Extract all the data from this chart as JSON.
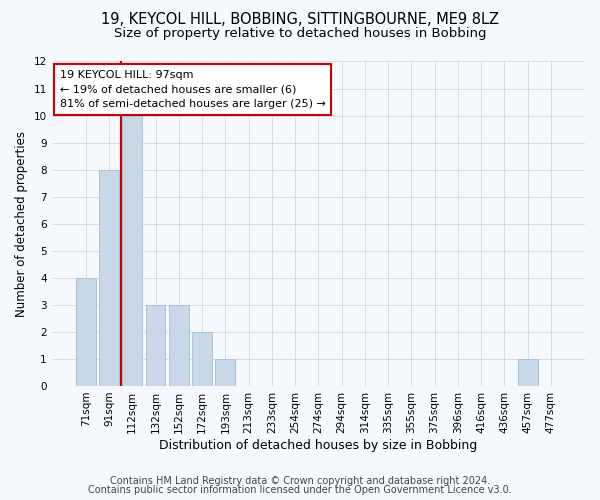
{
  "title1": "19, KEYCOL HILL, BOBBING, SITTINGBOURNE, ME9 8LZ",
  "title2": "Size of property relative to detached houses in Bobbing",
  "xlabel": "Distribution of detached houses by size in Bobbing",
  "ylabel": "Number of detached properties",
  "categories": [
    "71sqm",
    "91sqm",
    "112sqm",
    "132sqm",
    "152sqm",
    "172sqm",
    "193sqm",
    "213sqm",
    "233sqm",
    "254sqm",
    "274sqm",
    "294sqm",
    "314sqm",
    "335sqm",
    "355sqm",
    "375sqm",
    "396sqm",
    "416sqm",
    "436sqm",
    "457sqm",
    "477sqm"
  ],
  "values": [
    4,
    8,
    10,
    3,
    3,
    2,
    1,
    0,
    0,
    0,
    0,
    0,
    0,
    0,
    0,
    0,
    0,
    0,
    0,
    1,
    0
  ],
  "bar_color": "#c8d8e8",
  "bar_edge_color": "#a8bfcf",
  "vline_x_index": 1,
  "vline_color": "#cc0000",
  "annotation_line1": "19 KEYCOL HILL: 97sqm",
  "annotation_line2": "← 19% of detached houses are smaller (6)",
  "annotation_line3": "81% of semi-detached houses are larger (25) →",
  "annotation_box_facecolor": "#ffffff",
  "annotation_box_edgecolor": "#cc0000",
  "ylim_max": 12,
  "yticks": [
    0,
    1,
    2,
    3,
    4,
    5,
    6,
    7,
    8,
    9,
    10,
    11,
    12
  ],
  "footer1": "Contains HM Land Registry data © Crown copyright and database right 2024.",
  "footer2": "Contains public sector information licensed under the Open Government Licence v3.0.",
  "bg_color": "#f5f8fc",
  "plot_bg_color": "#f5f8fc",
  "grid_color": "#d0d8e0",
  "title1_fontsize": 10.5,
  "title2_fontsize": 9.5,
  "xlabel_fontsize": 9,
  "ylabel_fontsize": 8.5,
  "tick_fontsize": 7.5,
  "annotation_fontsize": 8,
  "footer_fontsize": 7
}
